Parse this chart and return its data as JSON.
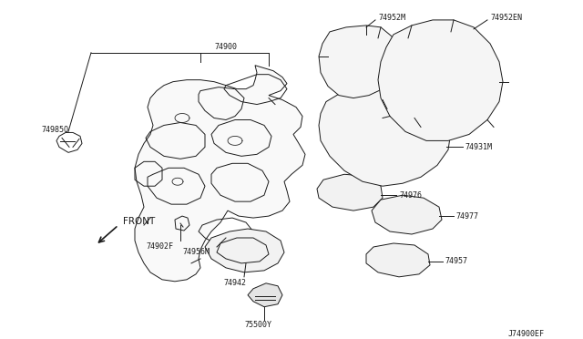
{
  "bg_color": "#ffffff",
  "line_color": "#1a1a1a",
  "line_width": 0.7,
  "label_color": "#1a1a1a",
  "label_fontsize": 6.0,
  "figsize": [
    6.4,
    3.72
  ],
  "dpi": 100,
  "diagram_id": "J74900EF",
  "xlim": [
    0,
    640
  ],
  "ylim": [
    0,
    372
  ]
}
